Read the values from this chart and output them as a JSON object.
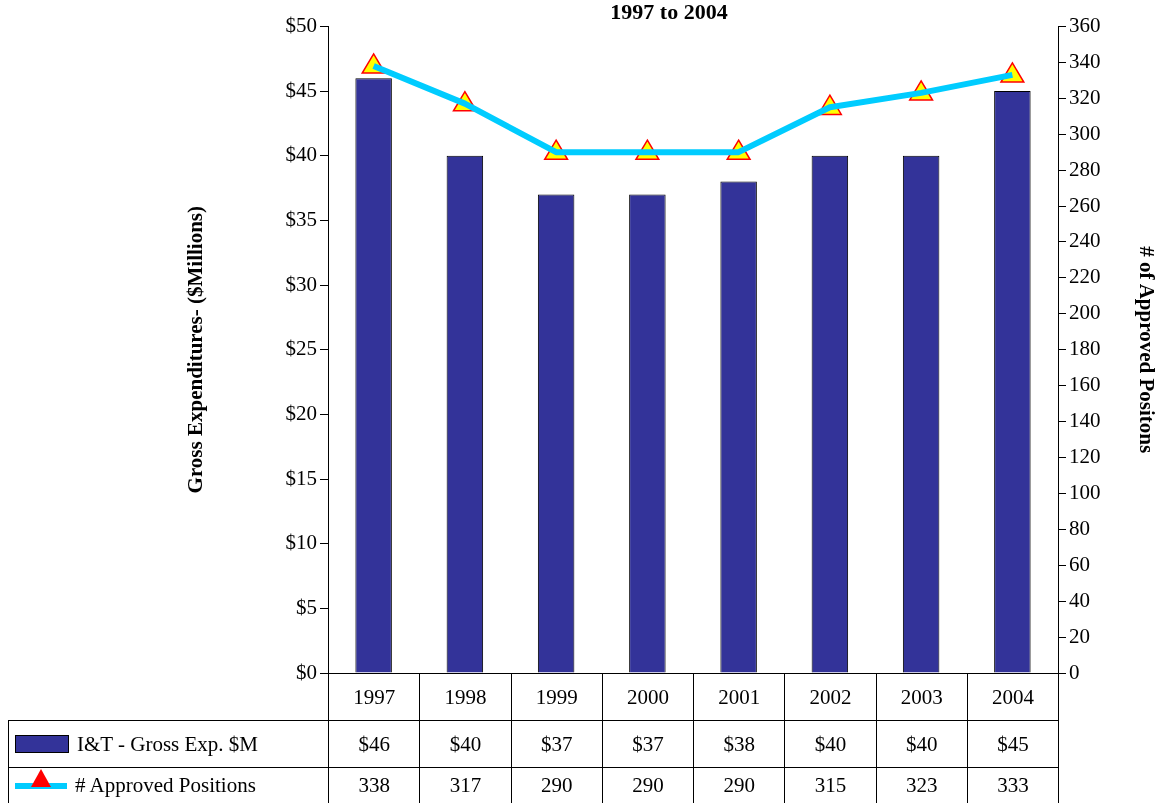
{
  "chart_data": {
    "type": "bar",
    "title": "1997 to 2004",
    "categories": [
      "1997",
      "1998",
      "1999",
      "2000",
      "2001",
      "2002",
      "2003",
      "2004"
    ],
    "ylabel": "Gross Expenditures- ($Millions)",
    "y2label": "# of Approved Positons",
    "series": [
      {
        "name": "I&T - Gross Exp. $M",
        "color": "#333399",
        "values": [
          46,
          40,
          37,
          37,
          38,
          40,
          40,
          45
        ],
        "value_labels": [
          "$46",
          "$40",
          "$37",
          "$37",
          "$38",
          "$40",
          "$40",
          "$45"
        ]
      },
      {
        "name": "# Approved Positions",
        "type": "line",
        "axis": "y2",
        "color": "#00ccff",
        "marker": "triangle",
        "values": [
          338,
          317,
          290,
          290,
          290,
          315,
          323,
          333
        ],
        "value_labels": [
          "338",
          "317",
          "290",
          "290",
          "290",
          "315",
          "323",
          "333"
        ]
      }
    ],
    "ylim": [
      0,
      50
    ],
    "yticks": [
      {
        "value": 0,
        "label": "$0"
      },
      {
        "value": 5,
        "label": "$5"
      },
      {
        "value": 10,
        "label": "$10"
      },
      {
        "value": 15,
        "label": "$15"
      },
      {
        "value": 20,
        "label": "$20"
      },
      {
        "value": 25,
        "label": "$25"
      },
      {
        "value": 30,
        "label": "$30"
      },
      {
        "value": 35,
        "label": "$35"
      },
      {
        "value": 40,
        "label": "$40"
      },
      {
        "value": 45,
        "label": "$45"
      },
      {
        "value": 50,
        "label": "$50"
      }
    ],
    "y2lim": [
      0,
      360
    ],
    "y2ticks": [
      0,
      20,
      40,
      60,
      80,
      100,
      120,
      140,
      160,
      180,
      200,
      220,
      240,
      260,
      280,
      300,
      320,
      340,
      360
    ],
    "grid": false,
    "legend": "bottom"
  }
}
